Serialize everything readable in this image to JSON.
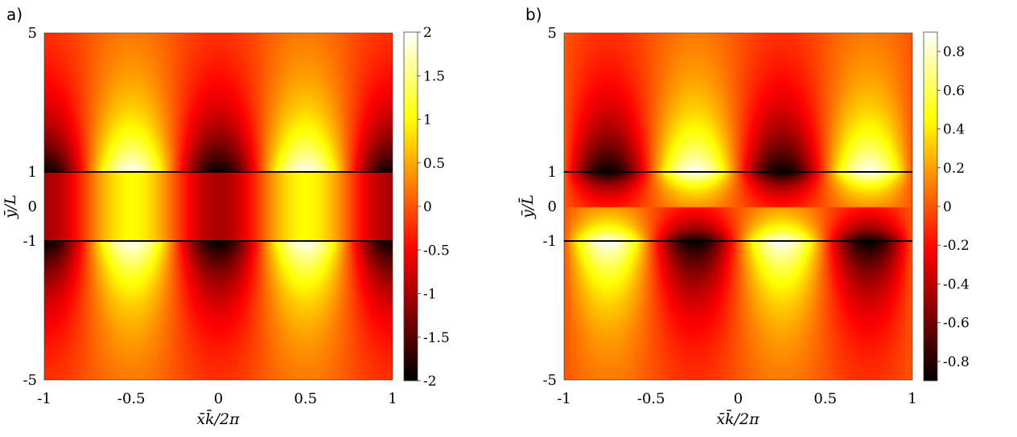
{
  "chart_data": [
    {
      "type": "heatmap",
      "panel_label": "a)",
      "xlabel": "x̄k̄/2π",
      "ylabel": "ȳ/L",
      "xlim": [
        -1,
        1
      ],
      "ylim": [
        -5,
        5
      ],
      "xticks": [
        "-1",
        "-0.5",
        "0",
        "0.5",
        "1"
      ],
      "yticks": [
        "5",
        "1",
        "0",
        "-1",
        "-5"
      ],
      "colorbar": {
        "range": [
          -2,
          2
        ],
        "ticks": [
          "2",
          "1.5",
          "1",
          "0.5",
          "0",
          "-0.5",
          "-1",
          "-1.5",
          "-2"
        ],
        "colormap": "hot"
      },
      "boundary_lines_y": [
        1,
        -1
      ],
      "field_description": "outer: 2cos(2πx) at interface decaying away; inner: -cos(2πx) banded",
      "outer_amplitude": 2,
      "inner_amplitude": 1,
      "outer_decay": 0.55,
      "inner_x_shift": 0.5
    },
    {
      "type": "heatmap",
      "panel_label": "b)",
      "xlabel": "x̄k̄/2π",
      "ylabel": "ȳ/L̄",
      "xlim": [
        -1,
        1
      ],
      "ylim": [
        -5,
        5
      ],
      "xticks": [
        "-1",
        "-0.5",
        "0",
        "0.5",
        "1"
      ],
      "yticks": [
        "5",
        "1",
        "0",
        "-1",
        "-5"
      ],
      "colorbar": {
        "range": [
          -0.9,
          0.9
        ],
        "ticks": [
          "0.8",
          "0.6",
          "0.4",
          "0.2",
          "0",
          "-0.2",
          "-0.4",
          "-0.6",
          "-0.8"
        ],
        "colormap": "hot"
      },
      "boundary_lines_y": [
        1,
        -1
      ],
      "field_description": "antisymmetric sin(2πx) pattern peaked at interfaces",
      "amplitude": 0.9,
      "decay": 0.55
    }
  ]
}
